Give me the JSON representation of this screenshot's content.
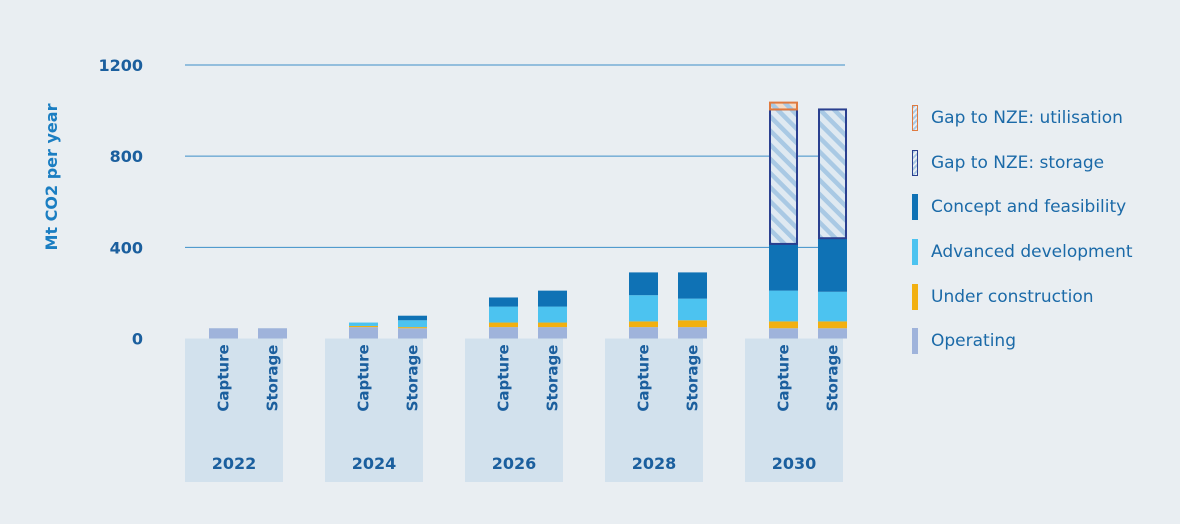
{
  "chart_data": {
    "type": "bar",
    "stacked": true,
    "ylabel": "Mt CO2 per year",
    "ylim": [
      0,
      1200
    ],
    "yticks": [
      0,
      400,
      800,
      1200
    ],
    "grid": true,
    "legend_position": "right",
    "groups": [
      "2022",
      "2024",
      "2026",
      "2028",
      "2030"
    ],
    "subcategories": [
      "Capture",
      "Storage"
    ],
    "series": [
      {
        "name": "Operating",
        "color": "#9fb3db",
        "pattern": false,
        "values": [
          [
            45,
            45
          ],
          [
            50,
            45
          ],
          [
            50,
            50
          ],
          [
            50,
            50
          ],
          [
            45,
            45
          ]
        ]
      },
      {
        "name": "Under construction",
        "color": "#f2b011",
        "pattern": false,
        "values": [
          [
            0,
            0
          ],
          [
            5,
            5
          ],
          [
            20,
            20
          ],
          [
            25,
            30
          ],
          [
            30,
            30
          ]
        ]
      },
      {
        "name": "Advanced development",
        "color": "#4cc3f0",
        "pattern": false,
        "values": [
          [
            0,
            0
          ],
          [
            15,
            30
          ],
          [
            70,
            70
          ],
          [
            115,
            95
          ],
          [
            135,
            130
          ]
        ]
      },
      {
        "name": "Concept and feasibility",
        "color": "#0f72b5",
        "pattern": false,
        "values": [
          [
            0,
            0
          ],
          [
            0,
            20
          ],
          [
            40,
            70
          ],
          [
            100,
            115
          ],
          [
            205,
            235
          ]
        ]
      },
      {
        "name": "Gap to NZE: storage",
        "color": "#2a3f8f",
        "pattern": true,
        "values": [
          [
            0,
            0
          ],
          [
            0,
            0
          ],
          [
            0,
            0
          ],
          [
            0,
            0
          ],
          [
            590,
            565
          ]
        ]
      },
      {
        "name": "Gap to NZE: utilisation",
        "color": "#e07a3f",
        "pattern": true,
        "values": [
          [
            0,
            0
          ],
          [
            0,
            0
          ],
          [
            0,
            0
          ],
          [
            0,
            0
          ],
          [
            30,
            0
          ]
        ]
      }
    ]
  },
  "legend": [
    {
      "label": "Gap to NZE: utilisation",
      "color": "#e07a3f",
      "pattern": true
    },
    {
      "label": "Gap to NZE: storage",
      "color": "#2a3f8f",
      "pattern": true
    },
    {
      "label": "Concept and feasibility",
      "color": "#0f72b5",
      "pattern": false
    },
    {
      "label": "Advanced development",
      "color": "#4cc3f0",
      "pattern": false
    },
    {
      "label": "Under construction",
      "color": "#f2b011",
      "pattern": false
    },
    {
      "label": "Operating",
      "color": "#9fb3db",
      "pattern": false
    }
  ]
}
